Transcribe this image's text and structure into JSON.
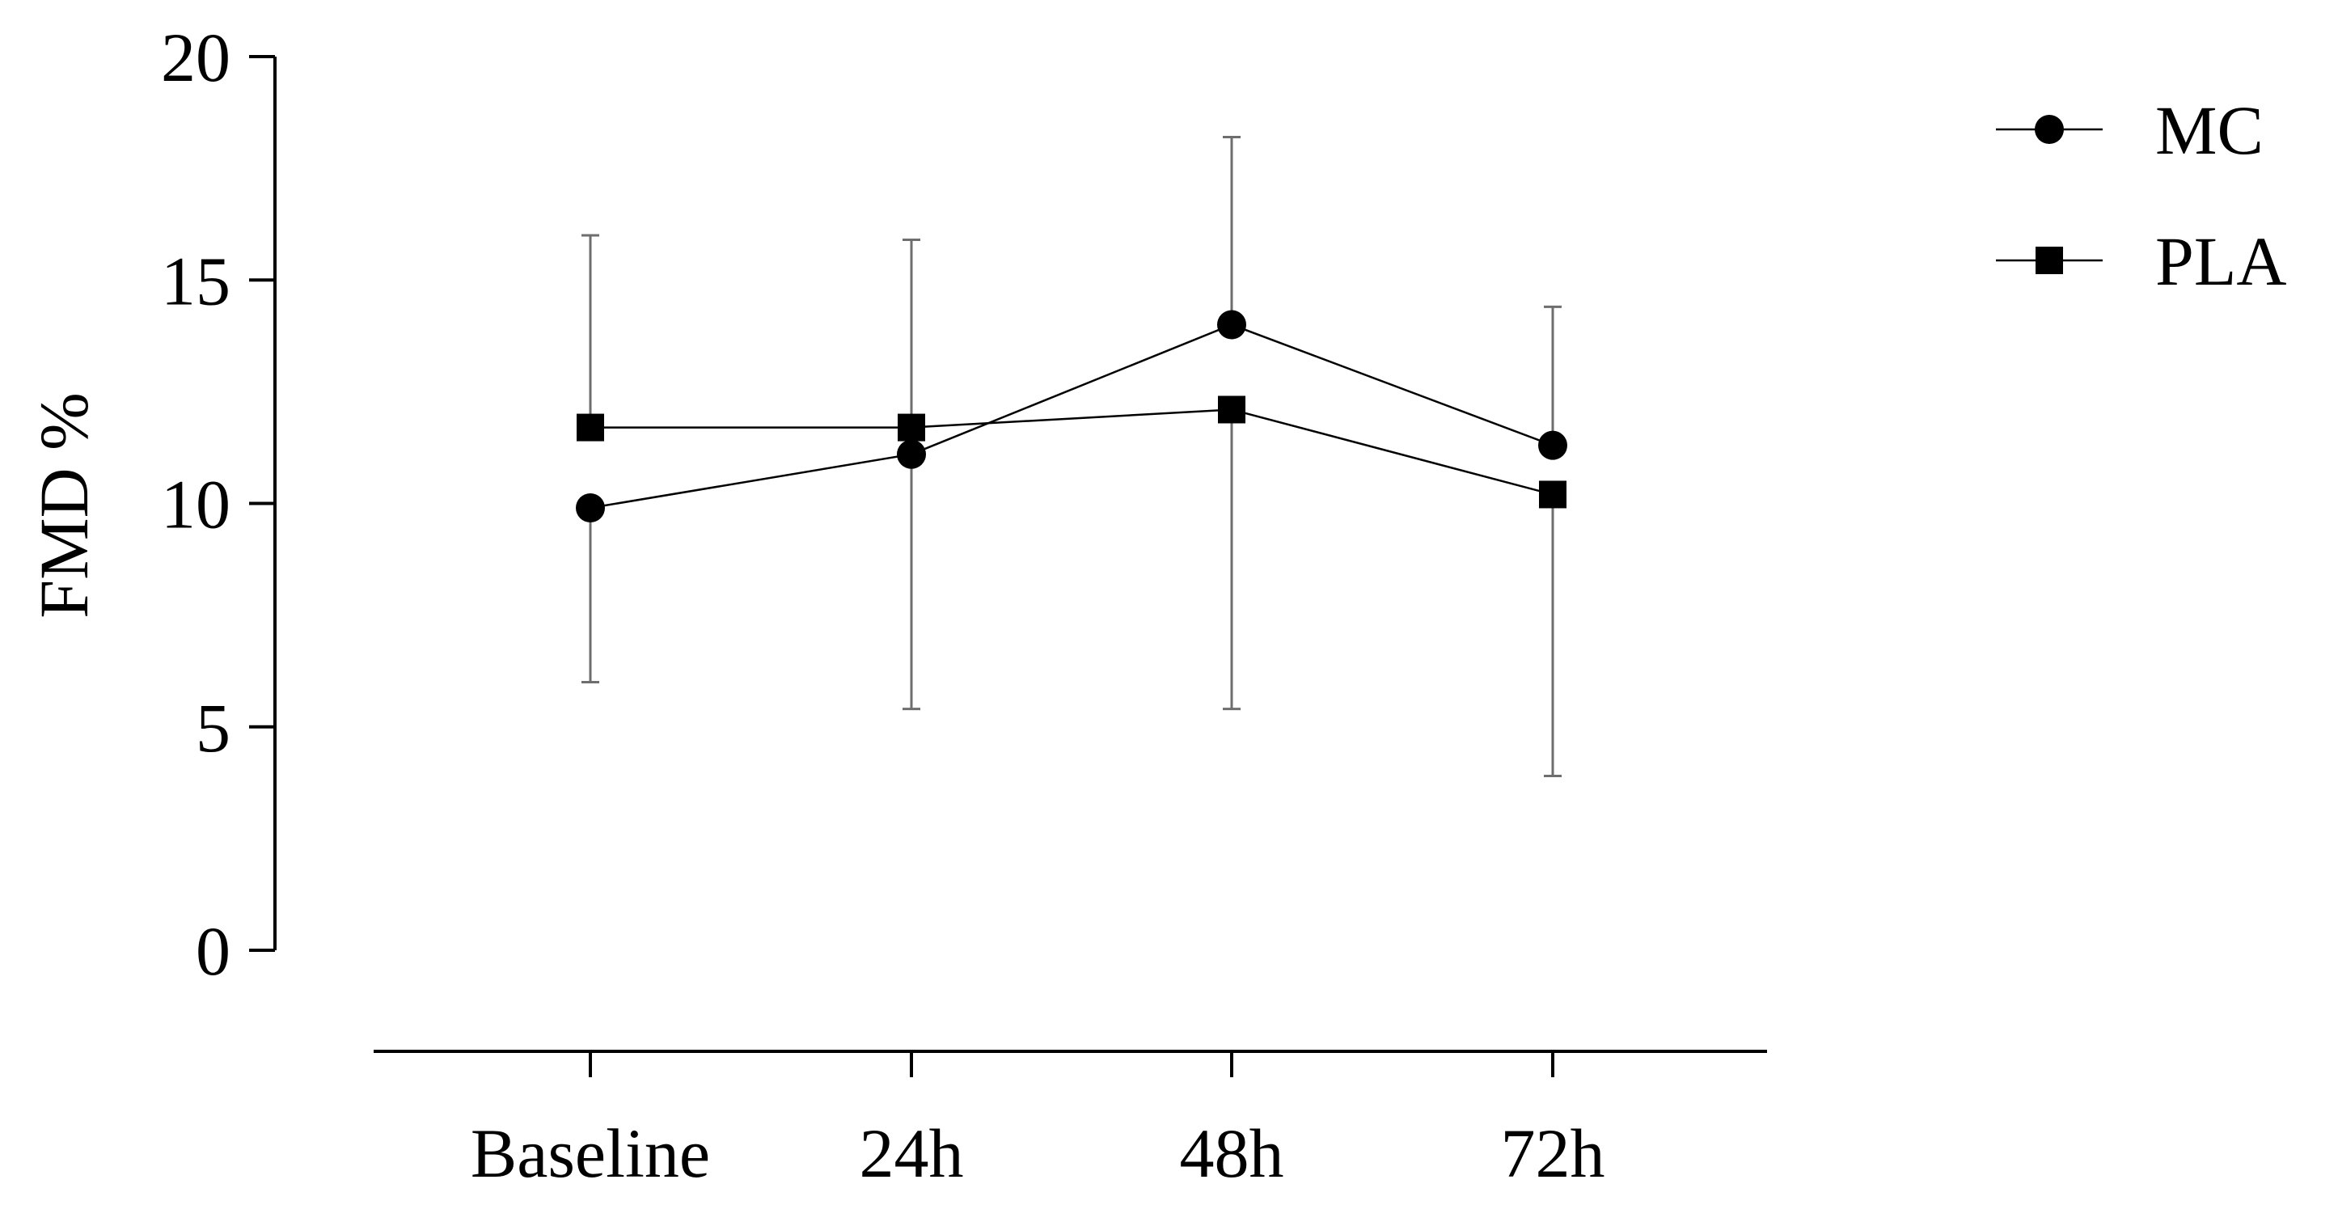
{
  "chart_data": {
    "type": "line",
    "categories": [
      "Baseline",
      "24h",
      "48h",
      "72h"
    ],
    "ylabel": "FMD %",
    "xlabel": "",
    "ylim": [
      0,
      20
    ],
    "yticks": [
      0,
      5,
      10,
      15,
      20
    ],
    "grid": false,
    "legend": "top-right",
    "series": [
      {
        "name": "MC",
        "marker": "circle",
        "values": [
          9.9,
          11.1,
          14.0,
          11.3
        ],
        "error_upper": [
          null,
          null,
          18.2,
          14.4
        ],
        "error_lower": [
          6.0,
          5.4,
          null,
          null
        ]
      },
      {
        "name": "PLA",
        "marker": "square",
        "values": [
          11.7,
          11.7,
          12.1,
          10.2
        ],
        "error_upper": [
          16.0,
          15.9,
          null,
          null
        ],
        "error_lower": [
          null,
          null,
          5.4,
          3.9
        ]
      }
    ],
    "colors": {
      "line": "#000000",
      "error_bar": "#6e6e6e"
    }
  }
}
